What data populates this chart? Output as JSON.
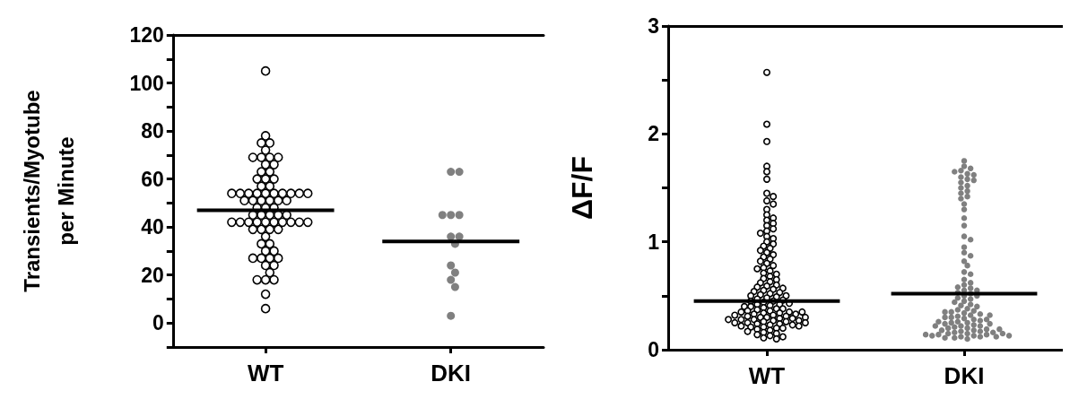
{
  "chart_data": [
    {
      "type": "scatter",
      "ylabel": "Transients/Myotube\nper Minute",
      "categories": [
        "WT",
        "DKI"
      ],
      "marker": "circle",
      "grid": false,
      "ylim": [
        -10,
        120
      ],
      "yticks": [
        {
          "value": -10,
          "label": null
        },
        0,
        {
          "value": 10,
          "label": null
        },
        20,
        {
          "value": 30,
          "label": null
        },
        40,
        {
          "value": 50,
          "label": null
        },
        60,
        {
          "value": 70,
          "label": null
        },
        80,
        {
          "value": 90,
          "label": null
        },
        100,
        {
          "value": 110,
          "label": null
        },
        120
      ],
      "series": [
        {
          "color": "#ffffff",
          "x": [
            "WT",
            "WT",
            "WT",
            "WT",
            "WT",
            "WT",
            "WT",
            "WT",
            "WT",
            "WT",
            "WT",
            "WT",
            "WT",
            "WT",
            "WT",
            "WT",
            "WT",
            "WT",
            "WT",
            "WT",
            "WT",
            "WT",
            "WT",
            "WT",
            "WT",
            "WT",
            "WT",
            "WT",
            "WT",
            "WT",
            "WT",
            "WT",
            "WT",
            "WT",
            "WT",
            "WT",
            "WT",
            "WT",
            "WT",
            "WT",
            "WT",
            "WT",
            "WT",
            "WT",
            "WT",
            "WT",
            "WT",
            "WT",
            "WT",
            "WT",
            "WT",
            "WT",
            "WT",
            "WT",
            "WT",
            "WT",
            "WT",
            "WT",
            "WT",
            "WT",
            "WT",
            "WT",
            "WT",
            "WT",
            "WT",
            "WT",
            "WT",
            "WT",
            "WT",
            "WT",
            "WT",
            "WT",
            "WT"
          ],
          "values": [
            105,
            78,
            75,
            75,
            72,
            69,
            69,
            69,
            69,
            66,
            66,
            63,
            63,
            60,
            60,
            60,
            57,
            57,
            54,
            54,
            54,
            54,
            54,
            54,
            54,
            54,
            54,
            54,
            51,
            51,
            51,
            51,
            51,
            51,
            48,
            48,
            48,
            45,
            45,
            45,
            45,
            45,
            42,
            42,
            42,
            42,
            42,
            42,
            42,
            42,
            42,
            42,
            39,
            39,
            39,
            39,
            36,
            33,
            33,
            30,
            30,
            27,
            27,
            27,
            27,
            24,
            24,
            21,
            18,
            18,
            18,
            12,
            6
          ]
        },
        {
          "color": "#808080",
          "x": [
            "DKI",
            "DKI",
            "DKI",
            "DKI",
            "DKI",
            "DKI",
            "DKI",
            "DKI",
            "DKI",
            "DKI",
            "DKI",
            "DKI",
            "DKI"
          ],
          "values": [
            63,
            63,
            45,
            45,
            45,
            36,
            36,
            33,
            24,
            21,
            18,
            15,
            3
          ]
        }
      ],
      "ref_lines": [
        {
          "axis": "y",
          "value": 47
        },
        {
          "axis": "y",
          "value": 34
        }
      ]
    },
    {
      "type": "scatter",
      "ylabel": "ΔF/F",
      "categories": [
        "WT",
        "DKI"
      ],
      "marker": "circle",
      "grid": false,
      "ylim": [
        0,
        3
      ],
      "yticks": [
        0,
        {
          "value": 0.5,
          "label": null
        },
        1,
        {
          "value": 1.5,
          "label": null
        },
        2,
        {
          "value": 2.5,
          "label": null
        },
        3
      ],
      "series": [
        {
          "color": "#ffffff",
          "x": [
            "WT",
            "WT",
            "WT",
            "WT",
            "WT",
            "WT",
            "WT",
            "WT",
            "WT",
            "WT",
            "WT",
            "WT",
            "WT",
            "WT",
            "WT",
            "WT",
            "WT",
            "WT",
            "WT",
            "WT",
            "WT",
            "WT",
            "WT",
            "WT",
            "WT",
            "WT",
            "WT",
            "WT",
            "WT",
            "WT",
            "WT",
            "WT",
            "WT",
            "WT",
            "WT",
            "WT",
            "WT",
            "WT",
            "WT",
            "WT",
            "WT",
            "WT",
            "WT",
            "WT",
            "WT",
            "WT",
            "WT",
            "WT",
            "WT",
            "WT",
            "WT",
            "WT",
            "WT",
            "WT",
            "WT",
            "WT",
            "WT",
            "WT",
            "WT",
            "WT",
            "WT",
            "WT",
            "WT",
            "WT",
            "WT",
            "WT",
            "WT",
            "WT",
            "WT",
            "WT",
            "WT",
            "WT",
            "WT",
            "WT",
            "WT",
            "WT",
            "WT",
            "WT",
            "WT",
            "WT",
            "WT",
            "WT",
            "WT",
            "WT",
            "WT",
            "WT",
            "WT",
            "WT",
            "WT",
            "WT",
            "WT",
            "WT",
            "WT",
            "WT",
            "WT",
            "WT",
            "WT",
            "WT",
            "WT",
            "WT",
            "WT",
            "WT",
            "WT",
            "WT",
            "WT",
            "WT",
            "WT",
            "WT",
            "WT",
            "WT",
            "WT",
            "WT",
            "WT",
            "WT",
            "WT",
            "WT",
            "WT",
            "WT",
            "WT",
            "WT"
          ],
          "values": [
            2.57,
            2.09,
            1.93,
            1.7,
            1.65,
            1.58,
            1.45,
            1.42,
            1.38,
            1.35,
            1.3,
            1.25,
            1.22,
            1.2,
            1.17,
            1.15,
            1.12,
            1.1,
            1.08,
            1.05,
            1.03,
            1.0,
            0.98,
            0.96,
            0.94,
            0.92,
            0.9,
            0.88,
            0.86,
            0.84,
            0.82,
            0.8,
            0.78,
            0.76,
            0.75,
            0.73,
            0.71,
            0.7,
            0.68,
            0.66,
            0.65,
            0.63,
            0.62,
            0.6,
            0.59,
            0.58,
            0.57,
            0.56,
            0.55,
            0.54,
            0.53,
            0.52,
            0.51,
            0.5,
            0.5,
            0.49,
            0.48,
            0.47,
            0.46,
            0.45,
            0.45,
            0.44,
            0.43,
            0.42,
            0.42,
            0.41,
            0.4,
            0.4,
            0.39,
            0.38,
            0.38,
            0.37,
            0.36,
            0.36,
            0.35,
            0.35,
            0.34,
            0.34,
            0.33,
            0.33,
            0.32,
            0.32,
            0.31,
            0.31,
            0.3,
            0.3,
            0.29,
            0.29,
            0.28,
            0.28,
            0.27,
            0.27,
            0.26,
            0.26,
            0.25,
            0.25,
            0.24,
            0.24,
            0.23,
            0.23,
            0.22,
            0.22,
            0.21,
            0.21,
            0.2,
            0.2,
            0.19,
            0.18,
            0.17,
            0.16,
            0.15,
            0.14,
            0.13,
            0.12,
            0.11,
            0.1,
            0.35,
            0.3,
            0.28,
            0.25
          ]
        },
        {
          "color": "#808080",
          "x": [
            "DKI",
            "DKI",
            "DKI",
            "DKI",
            "DKI",
            "DKI",
            "DKI",
            "DKI",
            "DKI",
            "DKI",
            "DKI",
            "DKI",
            "DKI",
            "DKI",
            "DKI",
            "DKI",
            "DKI",
            "DKI",
            "DKI",
            "DKI",
            "DKI",
            "DKI",
            "DKI",
            "DKI",
            "DKI",
            "DKI",
            "DKI",
            "DKI",
            "DKI",
            "DKI",
            "DKI",
            "DKI",
            "DKI",
            "DKI",
            "DKI",
            "DKI",
            "DKI",
            "DKI",
            "DKI",
            "DKI",
            "DKI",
            "DKI",
            "DKI",
            "DKI",
            "DKI",
            "DKI",
            "DKI",
            "DKI",
            "DKI",
            "DKI",
            "DKI",
            "DKI",
            "DKI",
            "DKI",
            "DKI",
            "DKI",
            "DKI",
            "DKI",
            "DKI",
            "DKI",
            "DKI",
            "DKI",
            "DKI",
            "DKI",
            "DKI",
            "DKI",
            "DKI",
            "DKI",
            "DKI",
            "DKI",
            "DKI",
            "DKI",
            "DKI",
            "DKI",
            "DKI",
            "DKI",
            "DKI",
            "DKI",
            "DKI",
            "DKI",
            "DKI",
            "DKI",
            "DKI",
            "DKI",
            "DKI",
            "DKI",
            "DKI",
            "DKI",
            "DKI",
            "DKI",
            "DKI",
            "DKI",
            "DKI",
            "DKI",
            "DKI",
            "DKI",
            "DKI",
            "DKI",
            "DKI",
            "DKI"
          ],
          "values": [
            1.75,
            1.7,
            1.68,
            1.66,
            1.65,
            1.63,
            1.62,
            1.6,
            1.58,
            1.57,
            1.55,
            1.52,
            1.5,
            1.47,
            1.45,
            1.42,
            1.4,
            1.35,
            1.3,
            1.22,
            1.15,
            1.05,
            1.02,
            0.95,
            0.9,
            0.87,
            0.82,
            0.78,
            0.72,
            0.7,
            0.65,
            0.62,
            0.6,
            0.58,
            0.57,
            0.55,
            0.55,
            0.53,
            0.52,
            0.5,
            0.5,
            0.48,
            0.47,
            0.45,
            0.44,
            0.42,
            0.41,
            0.4,
            0.38,
            0.37,
            0.36,
            0.35,
            0.34,
            0.33,
            0.32,
            0.31,
            0.3,
            0.3,
            0.29,
            0.28,
            0.27,
            0.26,
            0.25,
            0.25,
            0.24,
            0.23,
            0.22,
            0.22,
            0.21,
            0.2,
            0.2,
            0.19,
            0.18,
            0.18,
            0.17,
            0.17,
            0.16,
            0.16,
            0.15,
            0.15,
            0.14,
            0.14,
            0.13,
            0.13,
            0.12,
            0.12,
            0.12,
            0.11,
            0.28,
            0.26,
            0.24,
            0.32,
            0.35,
            0.22,
            0.19,
            0.15,
            0.14,
            0.13,
            0.11,
            0.1
          ]
        }
      ],
      "ref_lines": [
        {
          "axis": "y",
          "value": 0.45
        },
        {
          "axis": "y",
          "value": 0.52
        }
      ]
    }
  ]
}
